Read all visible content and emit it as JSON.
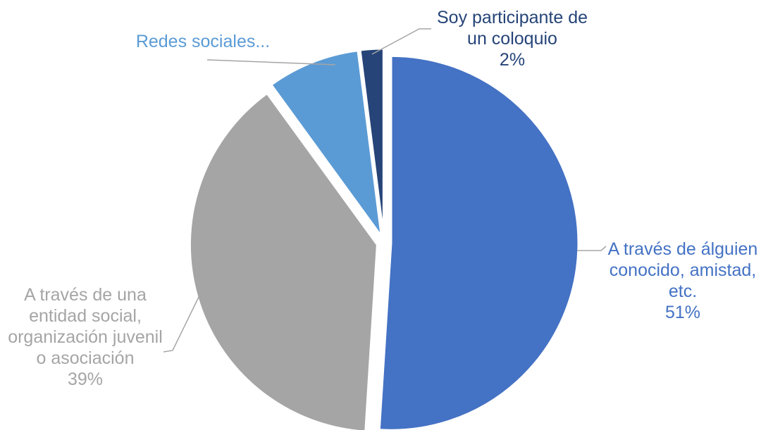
{
  "chart_data": {
    "type": "pie",
    "slices": [
      {
        "label_lines": [
          "A través de álguien",
          "conocido, amistad,",
          "etc."
        ],
        "percent_label": "51%",
        "value": 51,
        "color": "#4472C4",
        "label_color": "#4472C4"
      },
      {
        "label_lines": [
          "A través de una",
          "entidad social,",
          "organización juvenil",
          "o asociación"
        ],
        "percent_label": "39%",
        "value": 39,
        "color": "#A5A5A5",
        "label_color": "#A5A5A5"
      },
      {
        "label_lines": [
          "Redes sociales..."
        ],
        "percent_label": "",
        "value": 8,
        "color": "#5B9BD5",
        "label_color": "#5B9BD5"
      },
      {
        "label_lines": [
          "Soy participante de",
          "un coloquio"
        ],
        "percent_label": "2%",
        "value": 2,
        "color": "#264478",
        "label_color": "#264478"
      }
    ],
    "leader_line_color": "#A5A5A5"
  }
}
